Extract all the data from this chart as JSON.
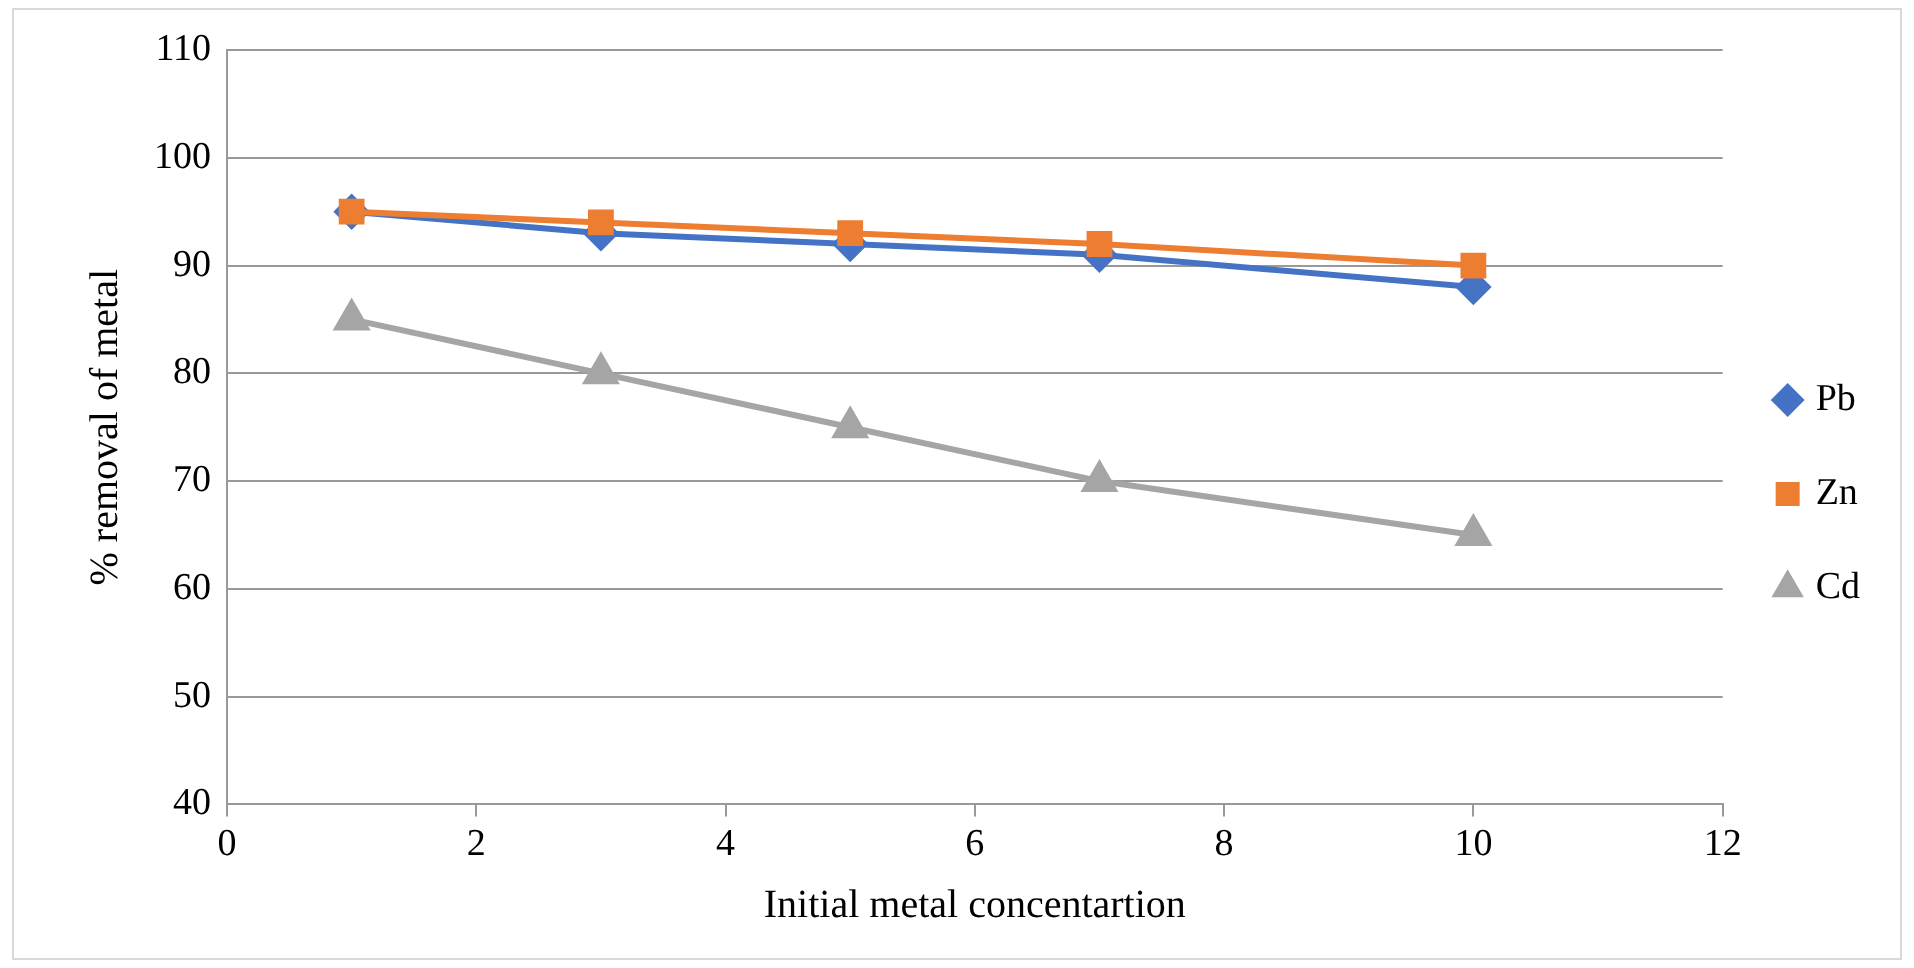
{
  "chart_data": {
    "type": "line",
    "xlabel": "Initial metal concentartion",
    "ylabel": "% removal of metal",
    "x": [
      1,
      3,
      5,
      7,
      10
    ],
    "series": [
      {
        "name": "Pb",
        "color": "#4472c4",
        "marker": "diamond",
        "values": [
          95,
          93,
          92,
          91,
          88
        ]
      },
      {
        "name": "Zn",
        "color": "#ed7d31",
        "marker": "square",
        "values": [
          95,
          94,
          93,
          92,
          90
        ]
      },
      {
        "name": "Cd",
        "color": "#a5a5a5",
        "marker": "triangle",
        "values": [
          85,
          80,
          75,
          70,
          65
        ]
      }
    ],
    "xlim": [
      0,
      12
    ],
    "xticks": [
      0,
      2,
      4,
      6,
      8,
      10,
      12
    ],
    "ylim": [
      40,
      110
    ],
    "yticks": [
      40,
      50,
      60,
      70,
      80,
      90,
      100,
      110
    ],
    "grid": "y",
    "legend": "right",
    "line_style": "solid"
  }
}
